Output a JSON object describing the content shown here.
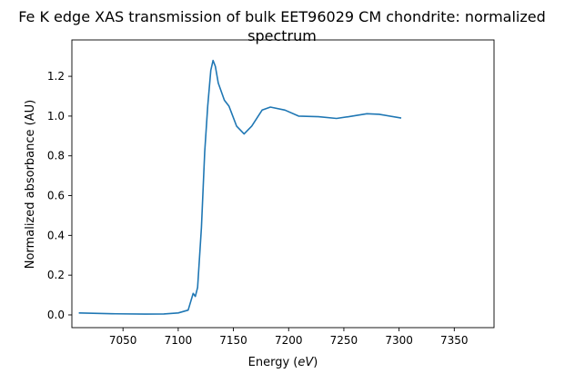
{
  "chart_data": {
    "type": "line",
    "title": "Fe K edge XAS transmission of bulk EET96029 CM chondrite: normalized spectrum",
    "title_lines": [
      "Fe K edge XAS transmission of bulk EET96029 CM chondrite: normalized",
      "spectrum"
    ],
    "xlabel": "Energy (eV)",
    "ylabel": "Normalized absorbance (AU)",
    "xlim": [
      7003.7,
      7386
    ],
    "ylim": [
      -0.064,
      1.383
    ],
    "xticks": [
      7050,
      7100,
      7150,
      7200,
      7250,
      7300,
      7350
    ],
    "yticks": [
      0.0,
      0.2,
      0.4,
      0.6,
      0.8,
      1.0,
      1.2
    ],
    "grid": false,
    "color": "#1f77b4",
    "series": [
      {
        "x": [
          7010,
          7040,
          7070,
          7087,
          7100,
          7109,
          7113.5,
          7115.5,
          7117.6,
          7121,
          7124,
          7126.7,
          7129.5,
          7131.6,
          7133.6,
          7136.3,
          7141.8,
          7146,
          7152.8,
          7159.7,
          7166.6,
          7176,
          7183.5,
          7196.7,
          7209,
          7227,
          7243.4,
          7257,
          7270.9,
          7281.9,
          7302
        ],
        "y": [
          0.01,
          0.006,
          0.004,
          0.005,
          0.01,
          0.024,
          0.108,
          0.093,
          0.138,
          0.44,
          0.82,
          1.05,
          1.23,
          1.28,
          1.25,
          1.166,
          1.08,
          1.05,
          0.95,
          0.91,
          0.95,
          1.03,
          1.045,
          1.03,
          1.0,
          0.997,
          0.988,
          0.999,
          1.012,
          1.009,
          0.99
        ]
      }
    ]
  }
}
